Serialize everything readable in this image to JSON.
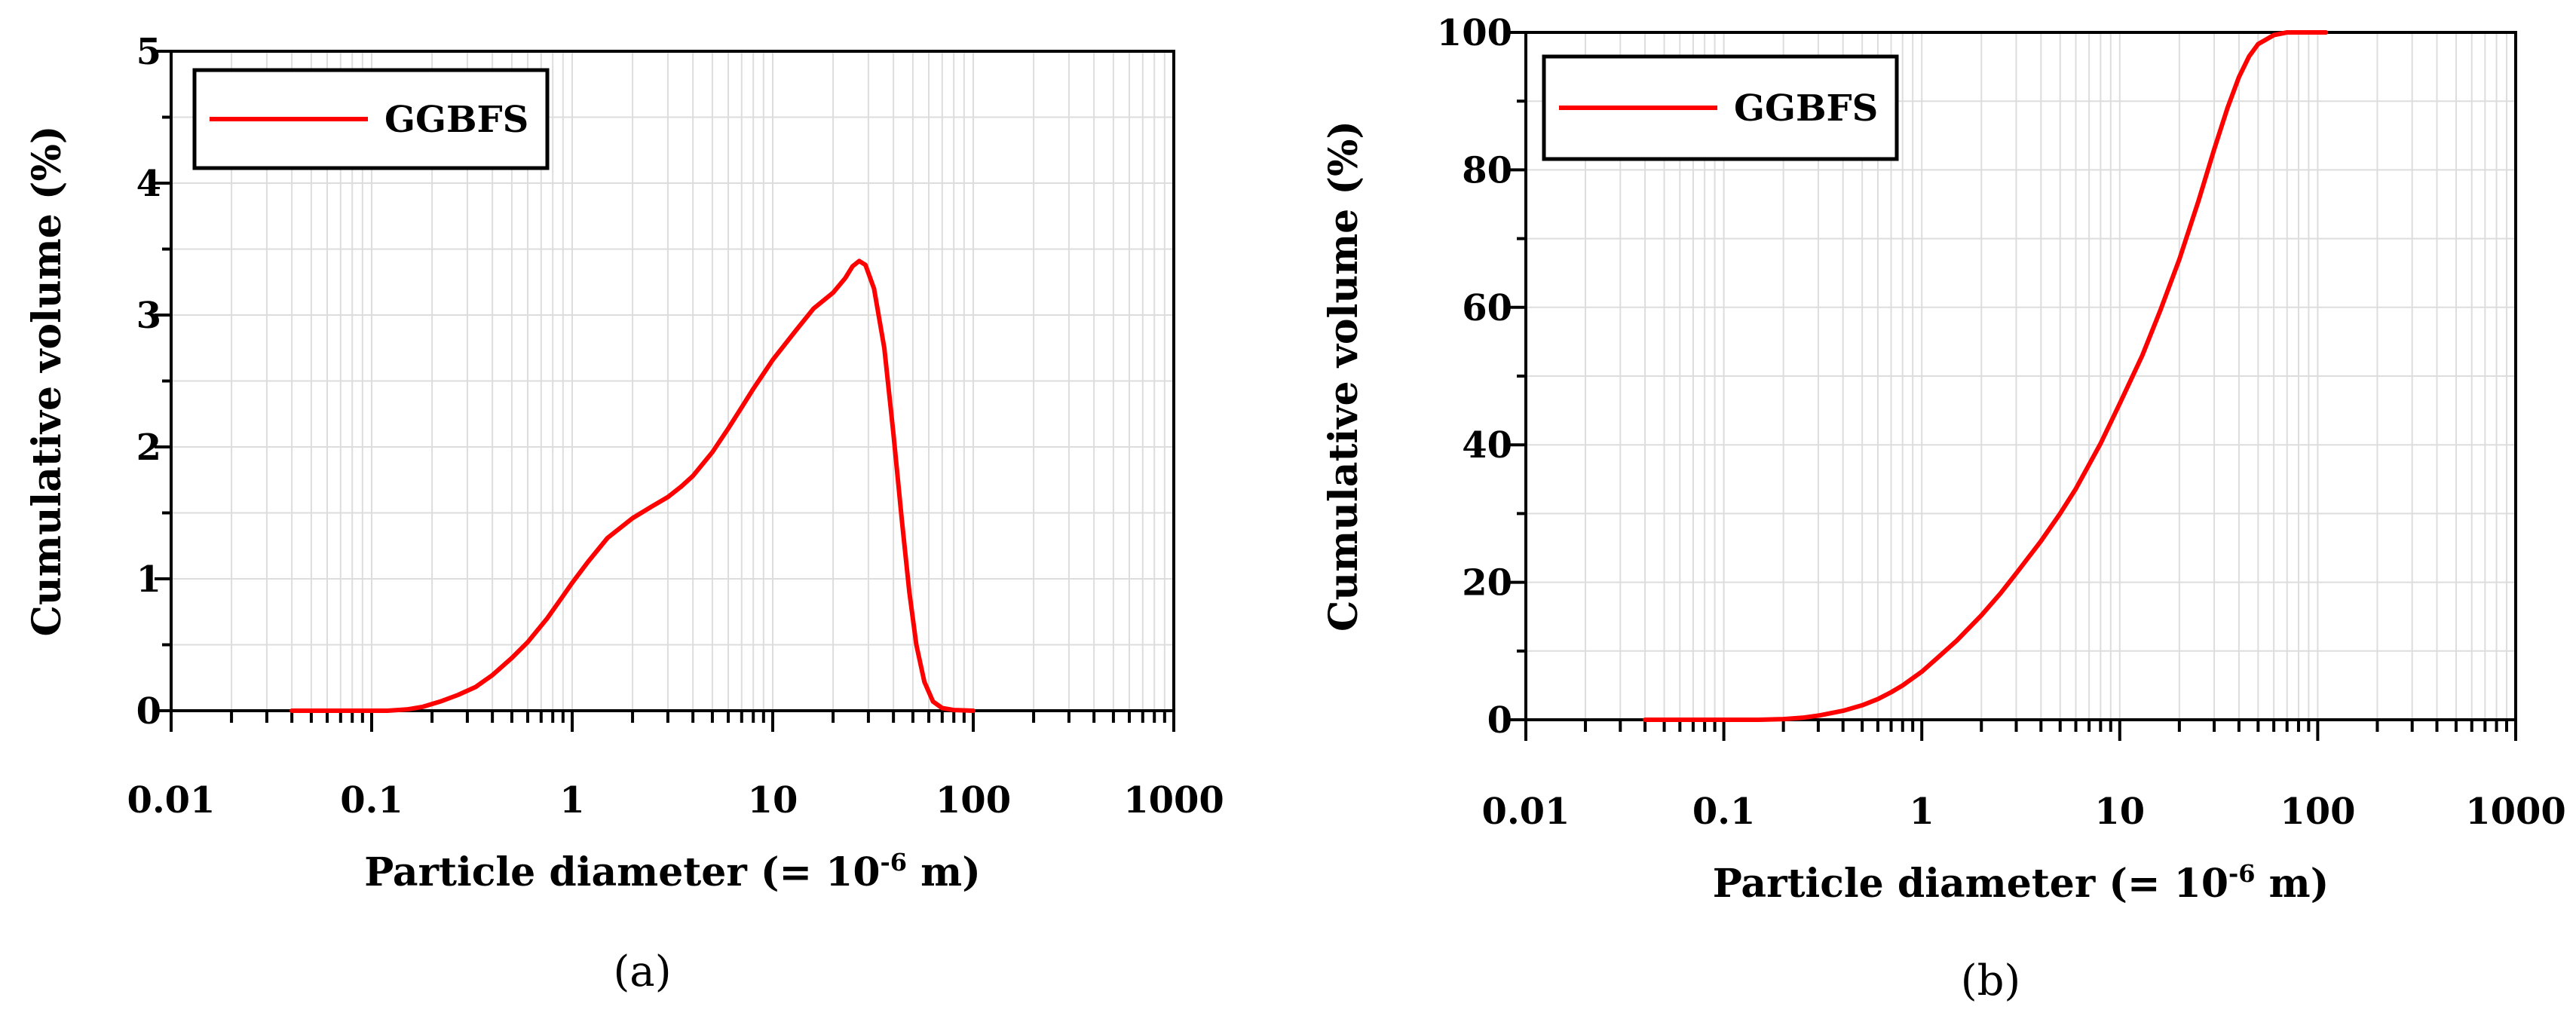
{
  "chart_data": [
    {
      "id": "a",
      "type": "line",
      "caption": "(a)",
      "xlabel": "Particle diameter (= 10",
      "xlabel_exponent": "-6",
      "xlabel_unit": " m)",
      "ylabel": "Cumulative volume (%)",
      "xscale": "log",
      "xlim": [
        0.01,
        1000
      ],
      "ylim": [
        0,
        5
      ],
      "grid": true,
      "legend_position": "top-left",
      "x_tick_labels": [
        "0.01",
        "0.1",
        "1",
        "10",
        "100",
        "1000"
      ],
      "y_tick_labels": [
        "0",
        "1",
        "2",
        "3",
        "4",
        "5"
      ],
      "series": [
        {
          "name": "GGBFS",
          "color": "#ff0000",
          "x": [
            0.04,
            0.06,
            0.08,
            0.1,
            0.12,
            0.15,
            0.18,
            0.22,
            0.27,
            0.33,
            0.4,
            0.5,
            0.6,
            0.75,
            0.9,
            1.0,
            1.2,
            1.5,
            2.0,
            2.5,
            3.0,
            3.5,
            4.0,
            5.0,
            6.0,
            7.0,
            8.0,
            10.0,
            13.0,
            16.0,
            20.0,
            23.0,
            25.0,
            27.0,
            29.0,
            32.0,
            36.0,
            40.0,
            44.0,
            48.0,
            52.0,
            57.0,
            63.0,
            70.0,
            80.0,
            100.0
          ],
          "values": [
            0,
            0,
            0,
            0,
            0,
            0.01,
            0.03,
            0.07,
            0.12,
            0.18,
            0.27,
            0.4,
            0.52,
            0.7,
            0.87,
            0.97,
            1.13,
            1.31,
            1.46,
            1.55,
            1.62,
            1.7,
            1.78,
            1.96,
            2.14,
            2.3,
            2.44,
            2.66,
            2.88,
            3.05,
            3.17,
            3.28,
            3.37,
            3.41,
            3.38,
            3.2,
            2.75,
            2.1,
            1.45,
            0.9,
            0.5,
            0.22,
            0.07,
            0.02,
            0.005,
            0
          ]
        }
      ]
    },
    {
      "id": "b",
      "type": "line",
      "caption": "(b)",
      "xlabel": "Particle diameter (= 10",
      "xlabel_exponent": "-6",
      "xlabel_unit": " m)",
      "ylabel": "Cumulative volume (%)",
      "xscale": "log",
      "xlim": [
        0.01,
        1000
      ],
      "ylim": [
        0,
        100
      ],
      "grid": true,
      "legend_position": "top-left",
      "x_tick_labels": [
        "0.01",
        "0.1",
        "1",
        "10",
        "100",
        "1000"
      ],
      "y_tick_labels": [
        "0",
        "20",
        "40",
        "60",
        "80",
        "100"
      ],
      "series": [
        {
          "name": "GGBFS",
          "color": "#ff0000",
          "x": [
            0.04,
            0.06,
            0.08,
            0.1,
            0.15,
            0.2,
            0.25,
            0.3,
            0.4,
            0.5,
            0.6,
            0.7,
            0.8,
            1.0,
            1.2,
            1.5,
            2.0,
            2.5,
            3.0,
            4.0,
            5.0,
            6.0,
            8.0,
            10.0,
            13.0,
            16.0,
            20.0,
            25.0,
            30.0,
            35.0,
            40.0,
            45.0,
            50.0,
            60.0,
            70.0,
            80.0,
            100.0,
            110.0
          ],
          "values": [
            0,
            0,
            0,
            0,
            0,
            0.1,
            0.3,
            0.6,
            1.3,
            2.1,
            3.0,
            4.0,
            5.0,
            7.0,
            9.0,
            11.5,
            15.2,
            18.4,
            21.3,
            26.0,
            30.0,
            33.6,
            40.2,
            46.0,
            53.0,
            59.5,
            67.0,
            75.5,
            83.0,
            89.0,
            93.5,
            96.5,
            98.3,
            99.6,
            100,
            100,
            100,
            100
          ]
        }
      ]
    }
  ]
}
